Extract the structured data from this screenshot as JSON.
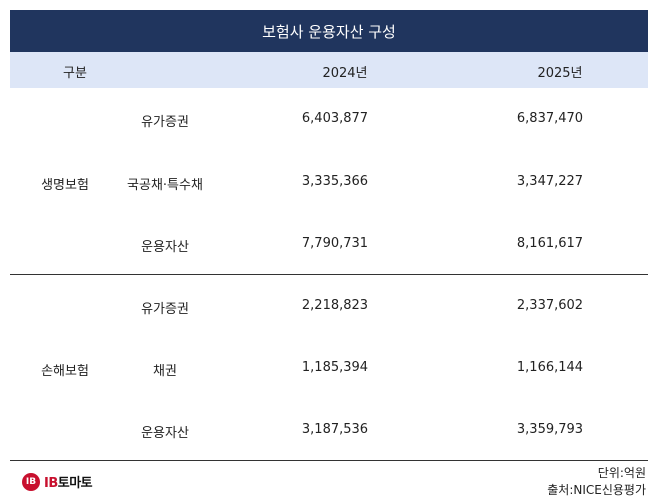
{
  "title": "보험사 운용자산 구성",
  "header": {
    "category": "구분",
    "year1": "2024년",
    "year2": "2025년"
  },
  "groups": [
    {
      "name": "생명보험",
      "rows": [
        {
          "item": "유가증권",
          "v2024": "6,403,877",
          "v2025": "6,837,470"
        },
        {
          "item": "국공채·특수채",
          "v2024": "3,335,366",
          "v2025": "3,347,227"
        },
        {
          "item": "운용자산",
          "v2024": "7,790,731",
          "v2025": "8,161,617"
        }
      ]
    },
    {
      "name": "손해보험",
      "rows": [
        {
          "item": "유가증권",
          "v2024": "2,218,823",
          "v2025": "2,337,602"
        },
        {
          "item": "채권",
          "v2024": "1,185,394",
          "v2025": "1,166,144"
        },
        {
          "item": "운용자산",
          "v2024": "3,187,536",
          "v2025": "3,359,793"
        }
      ]
    }
  ],
  "footer": {
    "unit": "단위:억원",
    "source": "출처:NICE신용평가",
    "logo_prefix": "IB",
    "logo_suffix": "토마토",
    "logo_mark": "IB"
  },
  "colors": {
    "title_bg": "#20355e",
    "header_bg": "#dde6f7",
    "logo_red": "#c8102e"
  }
}
